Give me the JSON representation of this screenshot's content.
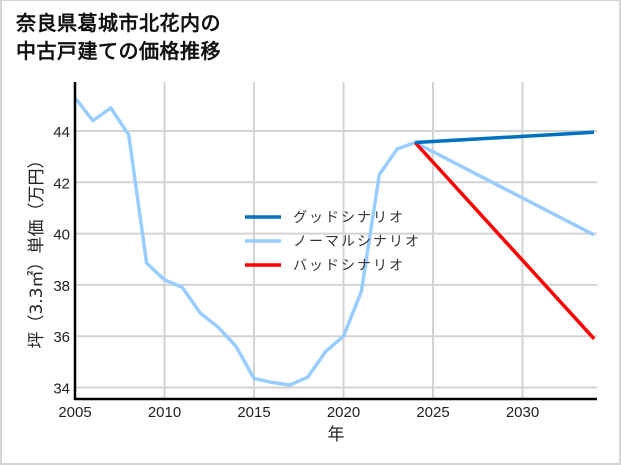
{
  "title": {
    "line1": "奈良県葛城市北花内の",
    "line2": "中古戸建ての価格推移"
  },
  "colors": {
    "good": "#0070c0",
    "normal": "#99ccff",
    "bad": "#ff0000",
    "grid": "#d3d3d3",
    "axis": "#000000"
  },
  "chart_data": {
    "type": "line",
    "title": "奈良県葛城市北花内の中古戸建ての価格推移",
    "xlabel": "年",
    "ylabel": "坪（3.3㎡）単価（万円）",
    "xlim": [
      2005,
      2034
    ],
    "ylim": [
      33.6,
      45.8
    ],
    "xticks": [
      2005,
      2010,
      2015,
      2020,
      2025,
      2030
    ],
    "yticks": [
      34,
      36,
      38,
      40,
      42,
      44
    ],
    "grid": true,
    "legend_position": "center",
    "series": [
      {
        "name": "ノーマルシナリオ",
        "role": "historical",
        "color": "#99ccff",
        "x": [
          2005,
          2006,
          2007,
          2008,
          2009,
          2010,
          2011,
          2012,
          2013,
          2014,
          2015,
          2016,
          2017,
          2018,
          2019,
          2020,
          2021,
          2022,
          2023,
          2024
        ],
        "values": [
          45.3,
          44.4,
          44.9,
          43.85,
          38.85,
          38.2,
          37.9,
          36.9,
          36.35,
          35.6,
          34.35,
          34.2,
          34.1,
          34.4,
          35.4,
          36.0,
          37.75,
          42.3,
          43.3,
          43.55
        ]
      },
      {
        "name": "グッドシナリオ",
        "color": "#0070c0",
        "x": [
          2024,
          2034
        ],
        "values": [
          43.55,
          43.95
        ]
      },
      {
        "name": "ノーマルシナリオ",
        "color": "#99ccff",
        "x": [
          2024,
          2034
        ],
        "values": [
          43.55,
          39.95
        ]
      },
      {
        "name": "バッドシナリオ",
        "color": "#ff0000",
        "x": [
          2024,
          2034
        ],
        "values": [
          43.55,
          35.9
        ]
      }
    ],
    "legend": [
      {
        "label": "グッドシナリオ",
        "color": "#0070c0"
      },
      {
        "label": "ノーマルシナリオ",
        "color": "#99ccff"
      },
      {
        "label": "バッドシナリオ",
        "color": "#ff0000"
      }
    ]
  }
}
